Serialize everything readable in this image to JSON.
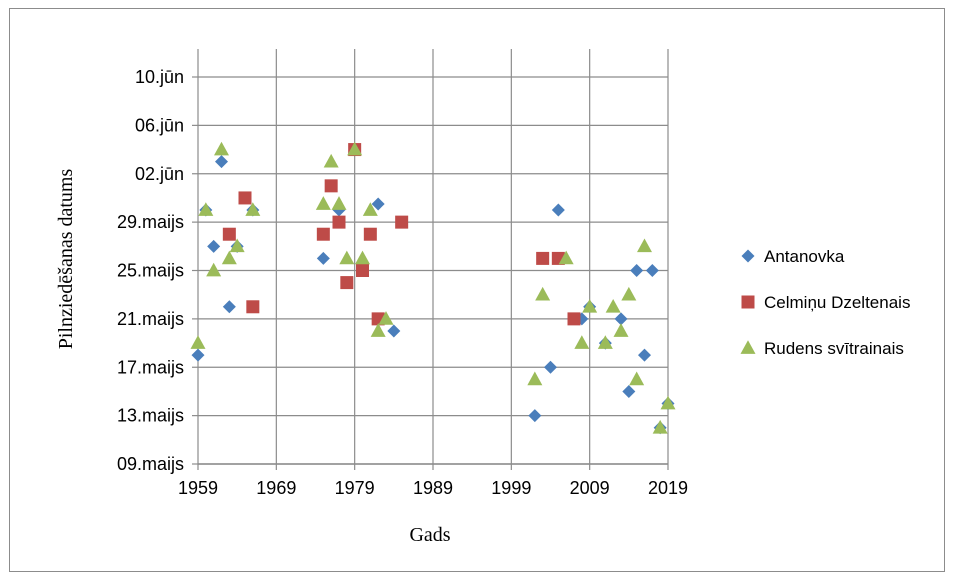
{
  "chart_data": {
    "type": "scatter",
    "xlabel": "Gads",
    "ylabel": "Pilnziedēšanas datums",
    "xlim": [
      1959,
      2019
    ],
    "x_ticks": [
      1959,
      1969,
      1979,
      1989,
      1999,
      2009,
      2019
    ],
    "x_tick_labels": [
      "1959",
      "1969",
      "1979",
      "1989",
      "1999",
      "2009",
      "2019"
    ],
    "ylim": [
      0,
      32
    ],
    "y_ticks": [
      0,
      4,
      8,
      12,
      16,
      20,
      24,
      28,
      32
    ],
    "y_tick_labels": [
      "09.maijs",
      "13.maijs",
      "17.maijs",
      "21.maijs",
      "25.maijs",
      "29.maijs",
      "02.jūn",
      "06.jūn",
      "10.jūn"
    ],
    "y_value_note": "days after 09.maijs",
    "grid": true,
    "legend_position": "right",
    "series": [
      {
        "name": "Antanovka",
        "marker": "diamond",
        "color": "#4a7ebb",
        "x": [
          1959,
          1960,
          1961,
          1962,
          1963,
          1964,
          1966,
          1975,
          1977,
          1982,
          1984,
          2002,
          2004,
          2005,
          2008,
          2009,
          2011,
          2013,
          2014,
          2015,
          2016,
          2017,
          2018,
          2019
        ],
        "y": [
          9,
          21,
          18,
          25,
          13,
          18,
          21,
          17,
          21,
          21.5,
          11,
          4,
          8,
          21,
          12,
          13,
          10,
          12,
          6,
          16,
          9,
          16,
          3,
          5
        ]
      },
      {
        "name": "Celmiņu Dzeltenais",
        "marker": "square",
        "color": "#be4b48",
        "x": [
          1963,
          1965,
          1966,
          1975,
          1976,
          1977,
          1978,
          1979,
          1980,
          1981,
          1982,
          1985,
          2003,
          2005,
          2007
        ],
        "y": [
          19,
          22,
          13,
          19,
          23,
          20,
          15,
          26,
          16,
          19,
          12,
          20,
          17,
          17,
          12
        ]
      },
      {
        "name": "Rudens svītrainais",
        "marker": "triangle",
        "color": "#9bbb59",
        "x": [
          1959,
          1960,
          1961,
          1962,
          1963,
          1964,
          1966,
          1975,
          1976,
          1977,
          1978,
          1979,
          1980,
          1981,
          1982,
          1983,
          2002,
          2003,
          2006,
          2008,
          2009,
          2011,
          2012,
          2013,
          2014,
          2015,
          2016,
          2018,
          2019
        ],
        "y": [
          10,
          21,
          16,
          26,
          17,
          18,
          21,
          21.5,
          25,
          21.5,
          17,
          26,
          17,
          21,
          11,
          12,
          7,
          14,
          17,
          10,
          13,
          10,
          13,
          11,
          14,
          7,
          18,
          3,
          5
        ]
      }
    ]
  }
}
